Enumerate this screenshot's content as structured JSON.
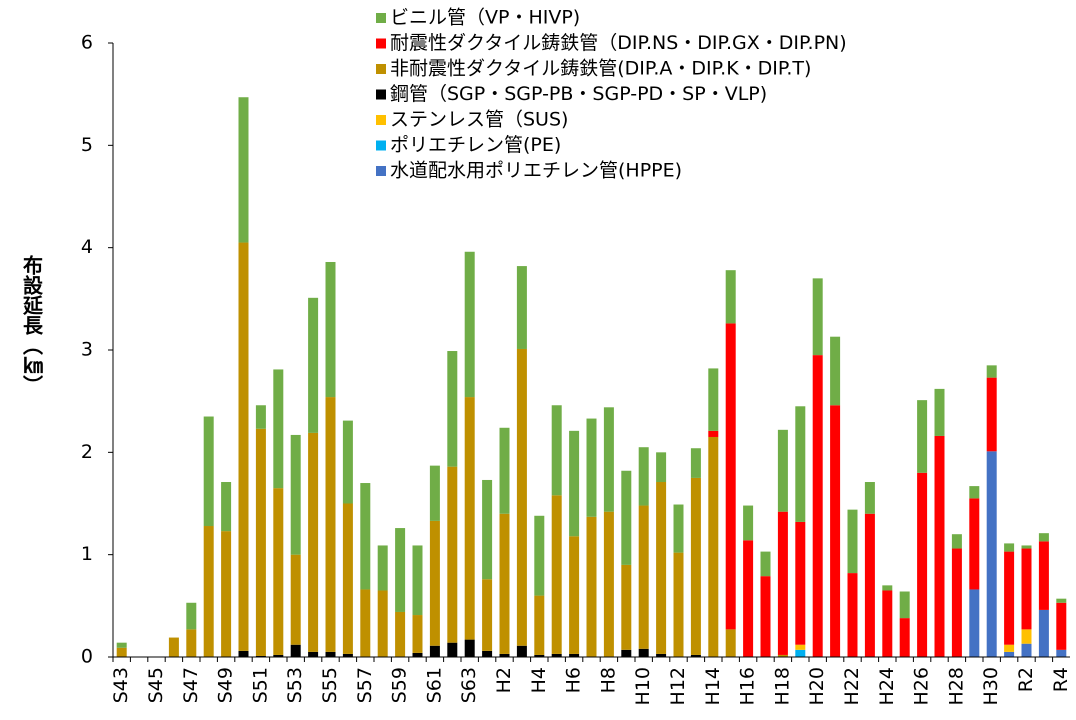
{
  "chart_data": {
    "type": "bar",
    "stacked": true,
    "y_label": "布設延長（㎞）",
    "categories": [
      "S43",
      null,
      "S45",
      null,
      "S47",
      null,
      "S49",
      null,
      "S51",
      null,
      "S53",
      null,
      "S55",
      null,
      "S57",
      null,
      "S59",
      null,
      "S61",
      null,
      "S63",
      null,
      "H2",
      null,
      "H4",
      null,
      "H6",
      null,
      "H8",
      null,
      "H10",
      null,
      "H12",
      null,
      "H14",
      null,
      "H16",
      null,
      "H18",
      null,
      "H20",
      null,
      "H22",
      null,
      "H24",
      null,
      "H26",
      null,
      "H28",
      null,
      "H30",
      null,
      "R2",
      null,
      "R4"
    ],
    "series": [
      {
        "name": "ビニル管（VP・HIVP)",
        "color": "#70ad47",
        "values": [
          0.05,
          0,
          0,
          0,
          0.26,
          1.07,
          0.48,
          1.42,
          0.23,
          1.16,
          1.17,
          1.32,
          1.32,
          0.81,
          1.04,
          0.44,
          0.82,
          0.68,
          0.54,
          1.13,
          1.42,
          0.97,
          0.84,
          0.81,
          0.78,
          0.88,
          1.03,
          0.96,
          1.02,
          0.92,
          0.57,
          0.29,
          0.47,
          0.29,
          0.61,
          0.52,
          0.34,
          0.24,
          0.8,
          1.13,
          0.75,
          0.67,
          0.62,
          0.31,
          0.05,
          0.26,
          0.71,
          0.46,
          0.14,
          0.12,
          0.12,
          0.08,
          0.03,
          0.08,
          0.04
        ]
      },
      {
        "name": "耐震性ダクタイル鋳鉄管（DIP.NS・DIP.GX・DIP.PN)",
        "color": "#ff0000",
        "values": [
          0,
          0,
          0,
          0,
          0,
          0,
          0,
          0,
          0,
          0,
          0,
          0,
          0,
          0,
          0,
          0,
          0,
          0,
          0,
          0,
          0,
          0,
          0,
          0,
          0,
          0,
          0,
          0,
          0,
          0,
          0,
          0,
          0,
          0,
          0.06,
          2.99,
          1.14,
          0.79,
          1.4,
          1.2,
          2.95,
          2.46,
          0.82,
          1.4,
          0.65,
          0.38,
          1.8,
          2.16,
          1.06,
          0.89,
          0.72,
          0.91,
          0.79,
          0.67,
          0.46
        ]
      },
      {
        "name": "非耐震性ダクタイル鋳鉄管(DIP.A・DIP.K・DIP.T)",
        "color": "#bf9000",
        "values": [
          0.09,
          0,
          0,
          0.19,
          0.27,
          1.28,
          1.23,
          3.99,
          2.22,
          1.63,
          0.88,
          2.14,
          2.49,
          1.47,
          0.66,
          0.65,
          0.44,
          0.37,
          1.22,
          1.72,
          2.37,
          0.7,
          1.37,
          2.9,
          0.58,
          1.55,
          1.15,
          1.37,
          1.42,
          0.83,
          1.4,
          1.68,
          1.02,
          1.73,
          2.15,
          0.27,
          0,
          0,
          0.02,
          0,
          0,
          0,
          0,
          0,
          0,
          0,
          0,
          0,
          0,
          0,
          0,
          0,
          0,
          0,
          0
        ]
      },
      {
        "name": "鋼管（SGP・SGP-PB・SGP-PD・SP・VLP)",
        "color": "#000000",
        "values": [
          0,
          0,
          0,
          0,
          0,
          0,
          0,
          0.06,
          0.01,
          0.02,
          0.12,
          0.05,
          0.05,
          0.03,
          0,
          0,
          0,
          0.04,
          0.11,
          0.14,
          0.17,
          0.06,
          0.03,
          0.11,
          0.02,
          0.03,
          0.03,
          0,
          0,
          0.07,
          0.08,
          0.03,
          0,
          0.02,
          0,
          0,
          0,
          0,
          0,
          0,
          0,
          0,
          0,
          0,
          0,
          0,
          0,
          0,
          0,
          0,
          0,
          0,
          0,
          0,
          0
        ]
      },
      {
        "name": "ステンレス管（SUS)",
        "color": "#ffc000",
        "values": [
          0,
          0,
          0,
          0,
          0,
          0,
          0,
          0,
          0,
          0,
          0,
          0,
          0,
          0,
          0,
          0,
          0,
          0,
          0,
          0,
          0,
          0,
          0,
          0,
          0,
          0,
          0,
          0,
          0,
          0,
          0,
          0,
          0,
          0,
          0,
          0,
          0,
          0,
          0,
          0.05,
          0,
          0,
          0,
          0,
          0,
          0,
          0,
          0,
          0,
          0,
          0,
          0.07,
          0.14,
          0,
          0
        ]
      },
      {
        "name": "ポリエチレン管(PE)",
        "color": "#00b0f0",
        "values": [
          0,
          0,
          0,
          0,
          0,
          0,
          0,
          0,
          0,
          0,
          0,
          0,
          0,
          0,
          0,
          0,
          0,
          0,
          0,
          0,
          0,
          0,
          0,
          0,
          0,
          0,
          0,
          0,
          0,
          0,
          0,
          0,
          0,
          0,
          0,
          0,
          0,
          0,
          0,
          0.07,
          0,
          0,
          0,
          0,
          0,
          0,
          0,
          0,
          0,
          0,
          0,
          0,
          0,
          0,
          0
        ]
      },
      {
        "name": "水道配水用ポリエチレン管(HPPE)",
        "color": "#4472c4",
        "values": [
          0,
          0,
          0,
          0,
          0,
          0,
          0,
          0,
          0,
          0,
          0,
          0,
          0,
          0,
          0,
          0,
          0,
          0,
          0,
          0,
          0,
          0,
          0,
          0,
          0,
          0,
          0,
          0,
          0,
          0,
          0,
          0,
          0,
          0,
          0,
          0,
          0,
          0,
          0,
          0,
          0,
          0,
          0,
          0,
          0,
          0,
          0,
          0,
          0,
          0.66,
          2.01,
          0.05,
          0.13,
          0.46,
          0.07
        ]
      }
    ],
    "ylim": [
      0,
      6
    ],
    "yticks": [
      0,
      1,
      2,
      3,
      4,
      5,
      6
    ],
    "grid": false
  }
}
